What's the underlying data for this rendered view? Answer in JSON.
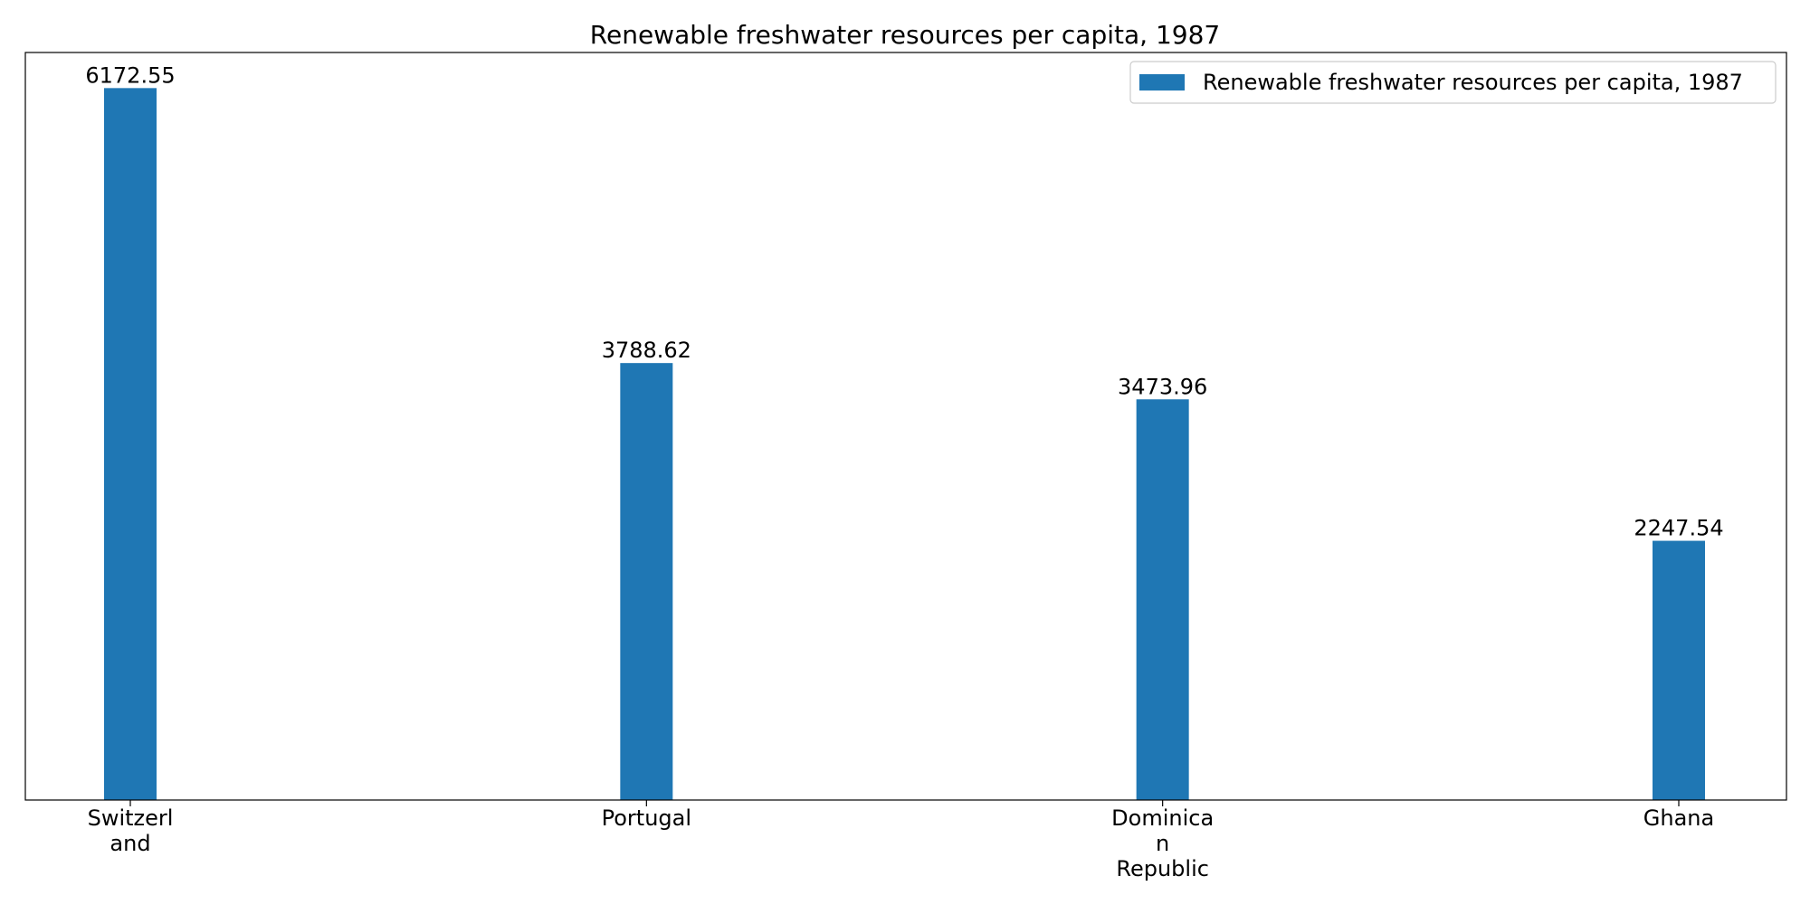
{
  "chart_data": {
    "type": "bar",
    "title": "Renewable freshwater resources per capita, 1987",
    "categories": [
      "Switzerland",
      "Portugal",
      "Dominican Republic",
      "Ghana"
    ],
    "tick_labels": [
      [
        "Switzerl",
        "and"
      ],
      [
        "Portugal"
      ],
      [
        "Dominica",
        "n",
        "Republic"
      ],
      [
        "Ghana"
      ]
    ],
    "series": [
      {
        "name": "Renewable freshwater resources per capita, 1987",
        "values": [
          6172.55,
          3788.62,
          3473.96,
          2247.54
        ],
        "value_labels": [
          "6172.55",
          "3788.62",
          "3473.96",
          "2247.54"
        ]
      }
    ],
    "xlabel": "",
    "ylabel": "",
    "ylim": [
      0,
      6481.18
    ],
    "y_axis_visible": false,
    "grid": false,
    "legend_position": "upper right",
    "colors": {
      "bar": "#1f77b4",
      "axes": "#000000",
      "legend_border": "#cccccc"
    }
  }
}
